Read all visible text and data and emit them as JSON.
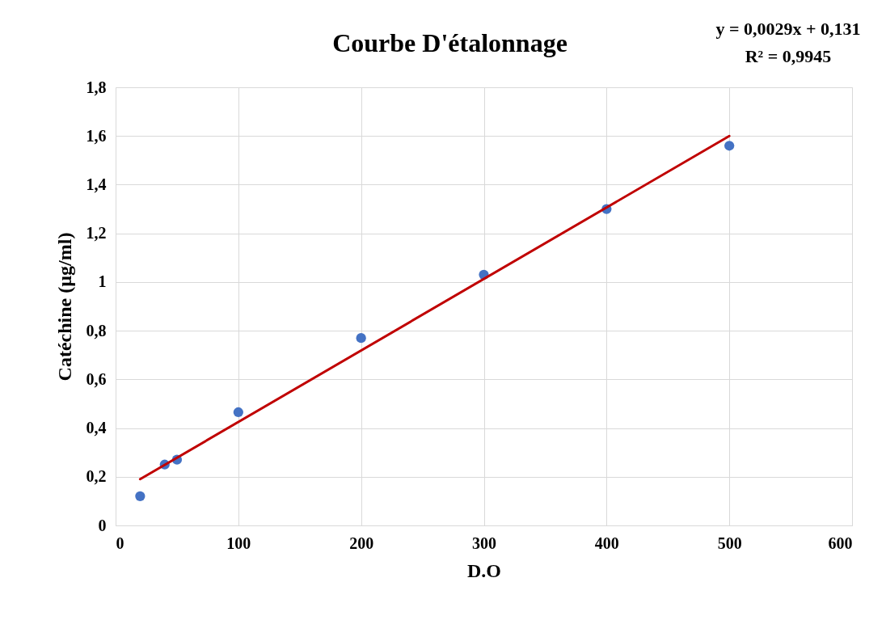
{
  "chart_data": {
    "type": "scatter",
    "title": "Courbe D'étalonnage",
    "xlabel": "D.O",
    "ylabel": "Catéchine (µg/ml)",
    "annotations": [
      "y = 0,0029x + 0,131",
      "R² = 0,9945"
    ],
    "x": [
      20,
      40,
      50,
      100,
      200,
      300,
      400,
      500
    ],
    "series": [
      {
        "color": "#4472c4",
        "marker": "circle",
        "values": [
          0.12,
          0.25,
          0.27,
          0.465,
          0.77,
          1.03,
          1.3,
          1.56
        ]
      },
      {
        "type": "line",
        "color": "#c00000",
        "line_style": "solid",
        "x": [
          20,
          500
        ],
        "values": [
          0.19,
          1.6
        ]
      }
    ],
    "xlim": [
      0,
      600
    ],
    "xticks": [
      0,
      100,
      200,
      300,
      400,
      500,
      600
    ],
    "ylim": [
      0,
      1.8
    ],
    "yticks": [
      0,
      {
        "value": 0.2,
        "label": "0,2"
      },
      {
        "value": 0.4,
        "label": "0,4"
      },
      {
        "value": 0.6,
        "label": "0,6"
      },
      {
        "value": 0.8,
        "label": "0,8"
      },
      1,
      {
        "value": 1.2,
        "label": "1,2"
      },
      {
        "value": 1.4,
        "label": "1,4"
      },
      {
        "value": 1.6,
        "label": "1,6"
      },
      {
        "value": 1.8,
        "label": "1,8"
      }
    ],
    "grid": true
  }
}
